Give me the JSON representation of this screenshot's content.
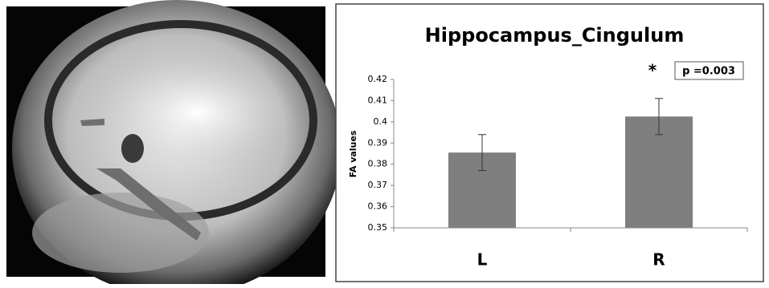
{
  "chart_data": {
    "type": "bar",
    "title": "Hippocampus_Cingulum",
    "y_label": "FA values",
    "categories": [
      "L",
      "R"
    ],
    "values": [
      0.3855,
      0.4025
    ],
    "errors": [
      0.0085,
      0.0085
    ],
    "color": "#7f7f7f",
    "ylim": [
      0.35,
      0.42
    ],
    "yticks": [
      0.35,
      0.36,
      0.37,
      0.38,
      0.39,
      0.4,
      0.41,
      0.42
    ],
    "annotations": [
      "*",
      "p =0.003"
    ]
  }
}
